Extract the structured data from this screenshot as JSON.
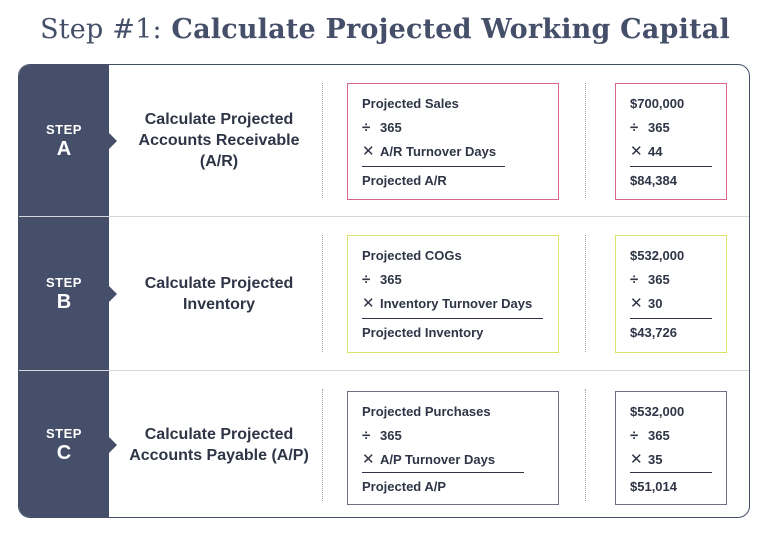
{
  "title": {
    "lead": "Step #1:",
    "main": "Calculate Projected Working Capital"
  },
  "steps": [
    {
      "step_word": "STEP",
      "letter": "A",
      "description": "Calculate Projected Accounts Receivable (A/R)",
      "accent_color": "#d9648e",
      "formula": {
        "base": "Projected Sales",
        "divide_op": "÷",
        "divisor": "365",
        "multiply_op": "✕",
        "multiplier": "A/R Turnover Days",
        "result": "Projected A/R"
      },
      "values": {
        "base": "$700,000",
        "divide_op": "÷",
        "divisor": "365",
        "multiply_op": "✕",
        "multiplier": "44",
        "result": "$84,384"
      }
    },
    {
      "step_word": "STEP",
      "letter": "B",
      "description": "Calculate Projected Inventory",
      "accent_color": "#dbe26e",
      "formula": {
        "base": "Projected COGs",
        "divide_op": "÷",
        "divisor": "365",
        "multiply_op": "✕",
        "multiplier": "Inventory Turnover Days",
        "result": "Projected Inventory"
      },
      "values": {
        "base": "$532,000",
        "divide_op": "÷",
        "divisor": "365",
        "multiply_op": "✕",
        "multiplier": "30",
        "result": "$43,726"
      }
    },
    {
      "step_word": "STEP",
      "letter": "C",
      "description": "Calculate Projected Accounts Payable (A/P)",
      "accent_color": "#6c7080",
      "formula": {
        "base": "Projected Purchases",
        "divide_op": "÷",
        "divisor": "365",
        "multiply_op": "✕",
        "multiplier": "A/P Turnover Days",
        "result": "Projected A/P"
      },
      "values": {
        "base": "$532,000",
        "divide_op": "÷",
        "divisor": "365",
        "multiply_op": "✕",
        "multiplier": "35",
        "result": "$51,014"
      }
    }
  ],
  "colors": {
    "navy": "#454f69",
    "text": "#2f3546",
    "divider": "#d6d8dd"
  }
}
